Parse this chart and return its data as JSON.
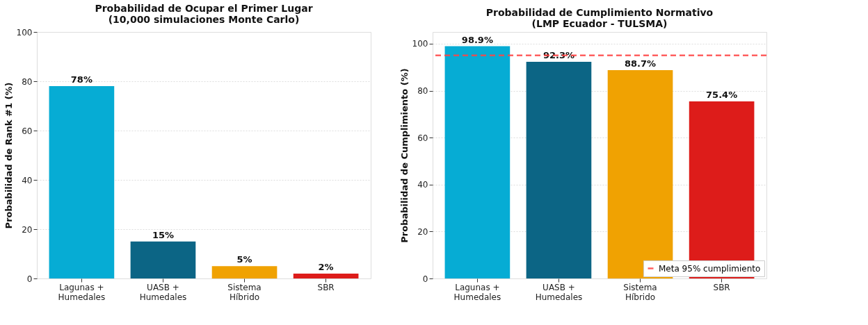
{
  "chart_data": [
    {
      "type": "bar",
      "title": "Probabilidad de Ocupar el Primer Lugar\n(10,000 simulaciones Monte Carlo)",
      "ylabel": "Probabilidad de Rank #1 (%)",
      "categories": [
        "Lagunas +\nHumedales",
        "UASB +\nHumedales",
        "Sistema\nHíbrido",
        "SBR"
      ],
      "values": [
        78,
        15,
        5,
        2
      ],
      "colors": [
        "#06acd4",
        "#0c6585",
        "#f0a202",
        "#dd1c1a"
      ],
      "value_labels": [
        "78%",
        "15%",
        "5%",
        "2%"
      ],
      "ylim": [
        0,
        100
      ],
      "yticks": [
        0,
        20,
        40,
        60,
        80,
        100
      ],
      "grid": "y"
    },
    {
      "type": "bar",
      "title": "Probabilidad de Cumplimiento Normativo\n(LMP Ecuador - TULSMA)",
      "ylabel": "Probabilidad de Cumplimiento (%)",
      "categories": [
        "Lagunas +\nHumedales",
        "UASB +\nHumedales",
        "Sistema\nHíbrido",
        "SBR"
      ],
      "values": [
        98.9,
        92.3,
        88.7,
        75.4
      ],
      "colors": [
        "#06acd4",
        "#0c6585",
        "#f0a202",
        "#dd1c1a"
      ],
      "value_labels": [
        "98.9%",
        "92.3%",
        "88.7%",
        "75.4%"
      ],
      "ylim": [
        0,
        105
      ],
      "yticks": [
        0,
        20,
        40,
        60,
        80,
        100
      ],
      "grid": "y",
      "ref_lines": [
        {
          "axis": "y",
          "value": 95,
          "label": "Meta 95% cumplimiento",
          "color": "#ff4444",
          "line_style": "dashed"
        }
      ],
      "legend": "bottom right"
    }
  ]
}
